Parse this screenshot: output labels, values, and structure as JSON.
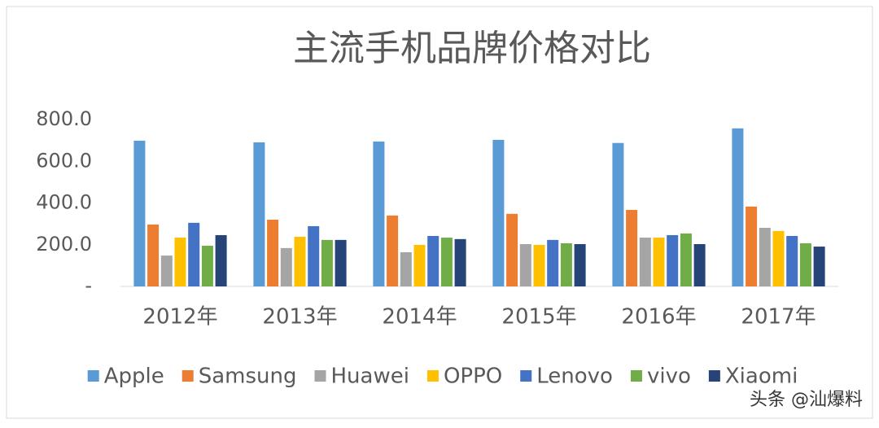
{
  "chart_data": {
    "type": "bar",
    "title": "主流手机品牌价格对比",
    "categories": [
      "2012年",
      "2013年",
      "2014年",
      "2015年",
      "2016年",
      "2017年"
    ],
    "series": [
      {
        "name": "Apple",
        "color": "#5b9bd5",
        "values": [
          699,
          691,
          695,
          703,
          688,
          758
        ]
      },
      {
        "name": "Samsung",
        "color": "#ed7d31",
        "values": [
          297,
          320,
          340,
          348,
          367,
          383
        ]
      },
      {
        "name": "Huawei",
        "color": "#a5a5a5",
        "values": [
          148,
          184,
          164,
          203,
          234,
          281
        ]
      },
      {
        "name": "OPPO",
        "color": "#ffc000",
        "values": [
          234,
          238,
          199,
          199,
          234,
          266
        ]
      },
      {
        "name": "Lenovo",
        "color": "#4472c4",
        "values": [
          305,
          289,
          242,
          223,
          246,
          242
        ]
      },
      {
        "name": "vivo",
        "color": "#70ad47",
        "values": [
          195,
          223,
          234,
          207,
          254,
          207
        ]
      },
      {
        "name": "Xiaomi",
        "color": "#264478",
        "values": [
          246,
          223,
          227,
          203,
          203,
          191
        ]
      }
    ],
    "ylim": [
      0,
      800
    ],
    "yticks": [
      {
        "value": 0,
        "label": "-"
      },
      {
        "value": 200,
        "label": "200.0"
      },
      {
        "value": 400,
        "label": "400.0"
      },
      {
        "value": 600,
        "label": "600.0"
      },
      {
        "value": 800,
        "label": "800.0"
      }
    ],
    "grid": false,
    "legend": "bottom",
    "watermark": "头条 @汕爆料"
  }
}
